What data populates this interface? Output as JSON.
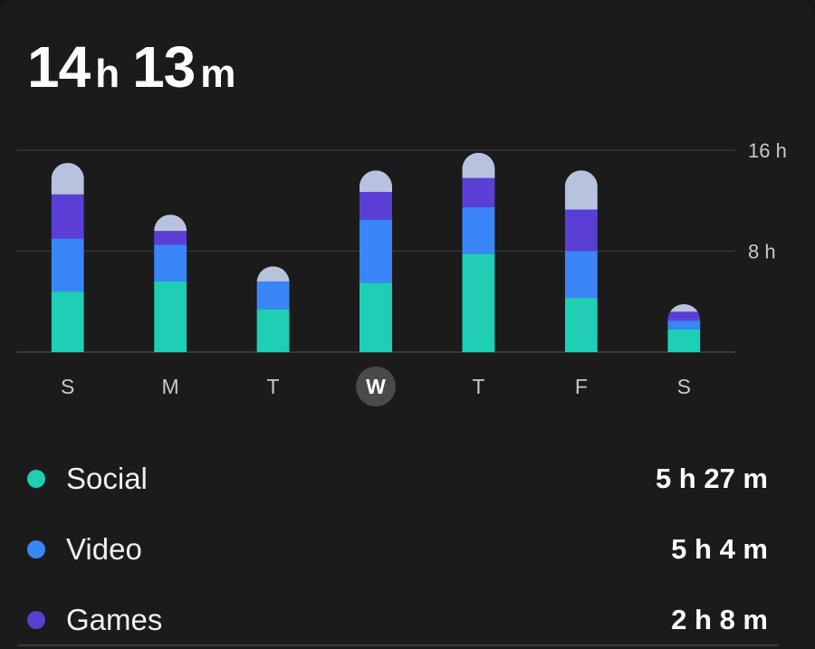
{
  "summary": {
    "hours": "14",
    "hours_unit": "h",
    "minutes": "13",
    "minutes_unit": "m"
  },
  "chart_data": {
    "type": "bar",
    "stacked": true,
    "categories": [
      "S",
      "M",
      "T",
      "W",
      "T",
      "F",
      "S"
    ],
    "selected_index": 3,
    "y_ticks": [
      "16 h",
      "8 h"
    ],
    "ylim": [
      0,
      16
    ],
    "series": [
      {
        "name": "Social",
        "color": "#1ecfb5",
        "values": [
          4.8,
          5.6,
          3.4,
          5.5,
          7.8,
          4.3,
          1.8
        ]
      },
      {
        "name": "Video",
        "color": "#3a86f8",
        "values": [
          4.2,
          2.9,
          2.2,
          5.0,
          3.7,
          3.7,
          0.7
        ]
      },
      {
        "name": "Games",
        "color": "#5b3ed6",
        "values": [
          3.5,
          1.1,
          0.0,
          2.2,
          2.3,
          3.3,
          0.7
        ]
      },
      {
        "values": [
          2.5,
          1.3,
          1.2,
          1.7,
          2.0,
          3.1,
          0.6
        ],
        "color": "#b7c3de"
      }
    ]
  },
  "legend": [
    {
      "label": "Social",
      "value": "5 h 27 m",
      "color": "#1ecfb5"
    },
    {
      "label": "Video",
      "value": "5 h 4 m",
      "color": "#3a86f8"
    },
    {
      "label": "Games",
      "value": "2 h 8 m",
      "color": "#5b3ed6"
    }
  ]
}
